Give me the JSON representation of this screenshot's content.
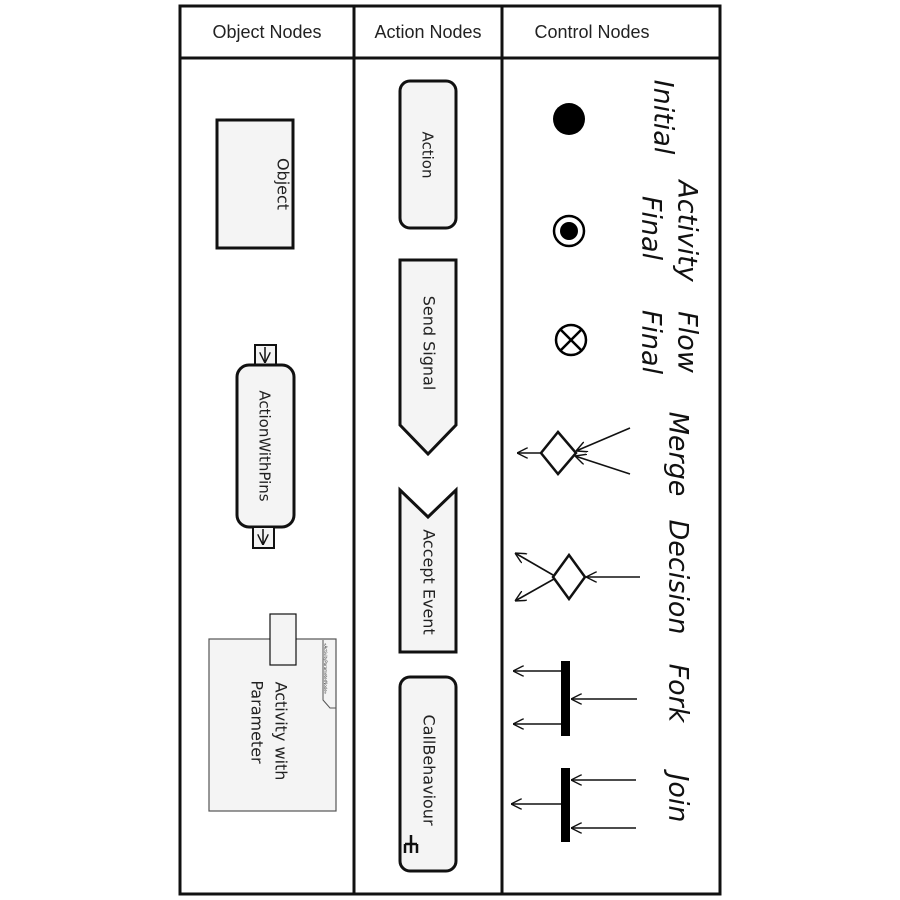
{
  "headers": {
    "object_nodes": "Object Nodes",
    "action_nodes": "Action Nodes",
    "control_nodes": "Control Nodes"
  },
  "object_nodes": {
    "object": "Object",
    "action_with_pins": "ActionWithPins",
    "activity_with_parameter_line1": "Activity with",
    "activity_with_parameter_line2": "Parameter",
    "parameter_stamp": "«ActivityParameterNode»"
  },
  "action_nodes": {
    "action": "Action",
    "send_signal": "Send Signal",
    "accept_event": "Accept Event",
    "call_behaviour": "CallBehaviour"
  },
  "control_nodes": {
    "initial": "Initial",
    "activity_final_line1": "Activity",
    "activity_final_line2": "Final",
    "flow_final_line1": "Flow",
    "flow_final_line2": "Final",
    "merge": "Merge",
    "decision": "Decision",
    "fork": "Fork",
    "join": "Join"
  },
  "colors": {
    "line": "#111111",
    "node_fill": "#f4f4f4"
  }
}
